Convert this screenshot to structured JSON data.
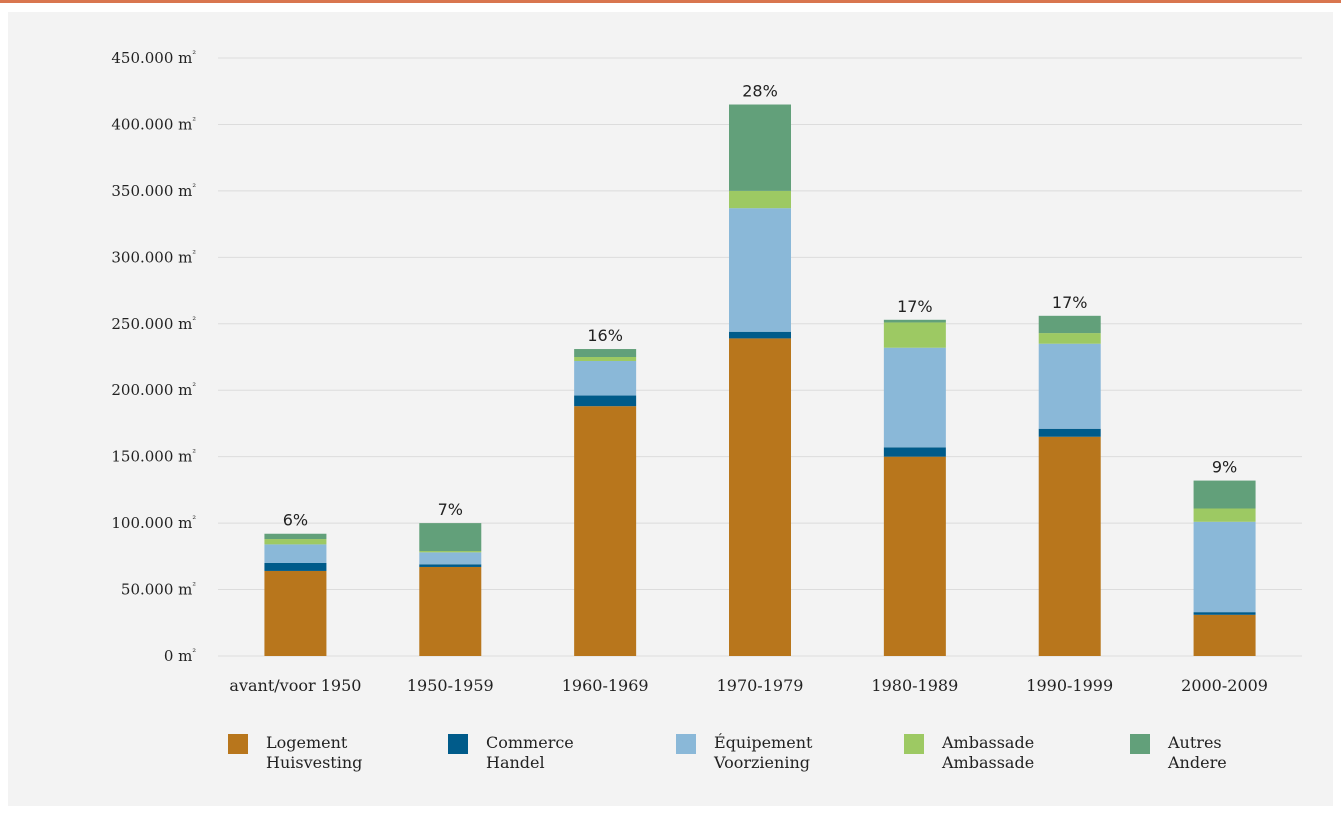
{
  "colors": {
    "accent_rule": "#d9764f",
    "panel": "#f3f3f3",
    "grid": "#dcdcdc"
  },
  "chart_data": {
    "type": "bar",
    "stacked": true,
    "title": "",
    "xlabel": "",
    "ylabel": "",
    "ylim": [
      0,
      450000
    ],
    "y_ticks": [
      0,
      50000,
      100000,
      150000,
      200000,
      250000,
      300000,
      350000,
      400000,
      450000
    ],
    "y_tick_labels": [
      "0 m²",
      "50.000 m²",
      "100.000 m²",
      "150.000 m²",
      "200.000 m²",
      "250.000 m²",
      "300.000 m²",
      "350.000 m²",
      "400.000 m²",
      "450.000 m²"
    ],
    "grid": true,
    "legend_position": "bottom",
    "categories": [
      "avant/voor 1950",
      "1950-1959",
      "1960-1969",
      "1970-1979",
      "1980-1989",
      "1990-1999",
      "2000-2009"
    ],
    "bar_labels": [
      "6%",
      "7%",
      "16%",
      "28%",
      "17%",
      "17%",
      "9%"
    ],
    "series": [
      {
        "name": "Logement",
        "name2": "Huisvesting",
        "color": "#b8761c",
        "values": [
          64000,
          67000,
          188000,
          239000,
          150000,
          165000,
          31000
        ]
      },
      {
        "name": "Commerce",
        "name2": "Handel",
        "color": "#005b8a",
        "values": [
          6000,
          2000,
          8000,
          5000,
          7000,
          6000,
          2000
        ]
      },
      {
        "name": "Équipement",
        "name2": "Voorziening",
        "color": "#8ab8d8",
        "values": [
          14000,
          9000,
          26000,
          93000,
          75000,
          64000,
          68000
        ]
      },
      {
        "name": "Ambassade",
        "name2": "Ambassade",
        "color": "#9dc963",
        "values": [
          4000,
          1000,
          3000,
          13000,
          19000,
          8000,
          10000
        ]
      },
      {
        "name": "Autres",
        "name2": "Andere",
        "color": "#62a07a",
        "values": [
          4000,
          21000,
          6000,
          65000,
          2000,
          13000,
          21000
        ]
      }
    ]
  }
}
